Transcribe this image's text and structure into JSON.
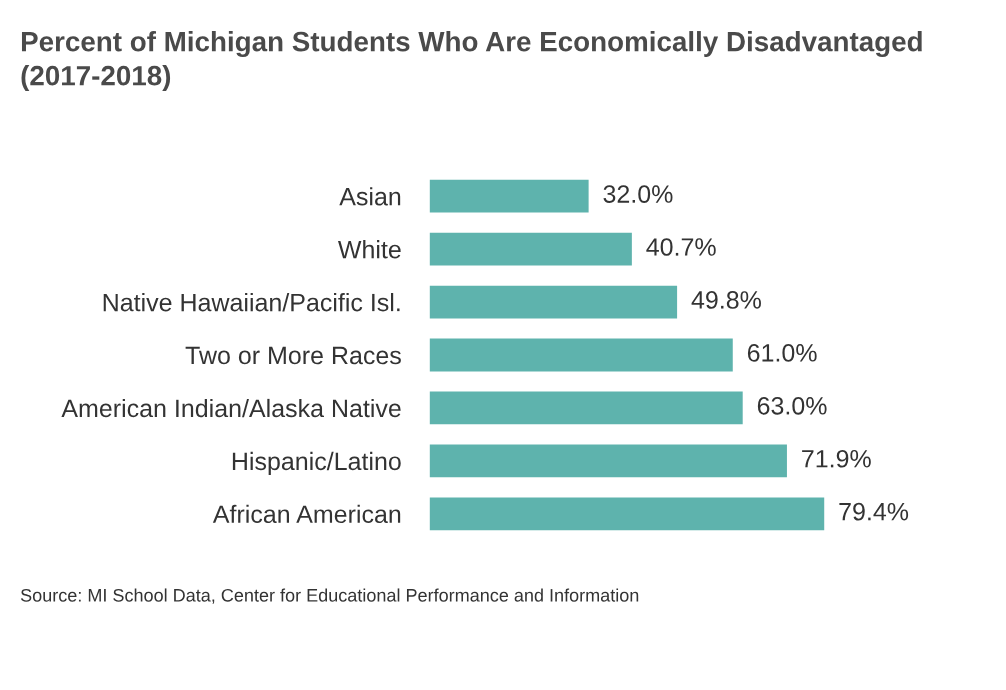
{
  "chart_data": {
    "type": "bar",
    "orientation": "horizontal",
    "title": "Percent of Michigan Students Who Are Economically Disadvantaged\n(2017-2018)",
    "categories": [
      "Asian",
      "White",
      "Native Hawaiian/Pacific Isl.",
      "Two or More Races",
      "American Indian/Alaska Native",
      "Hispanic/Latino",
      "African American"
    ],
    "values": [
      32.0,
      40.7,
      49.8,
      61.0,
      63.0,
      71.9,
      79.4
    ],
    "value_labels": [
      "32.0%",
      "40.7%",
      "49.8%",
      "61.0%",
      "63.0%",
      "71.9%",
      "79.4%"
    ],
    "color": "#5eb3ad",
    "annotations": [
      "Source: MI School Data, Center for Educational Performance and Information"
    ],
    "grid": false,
    "legend": false
  }
}
